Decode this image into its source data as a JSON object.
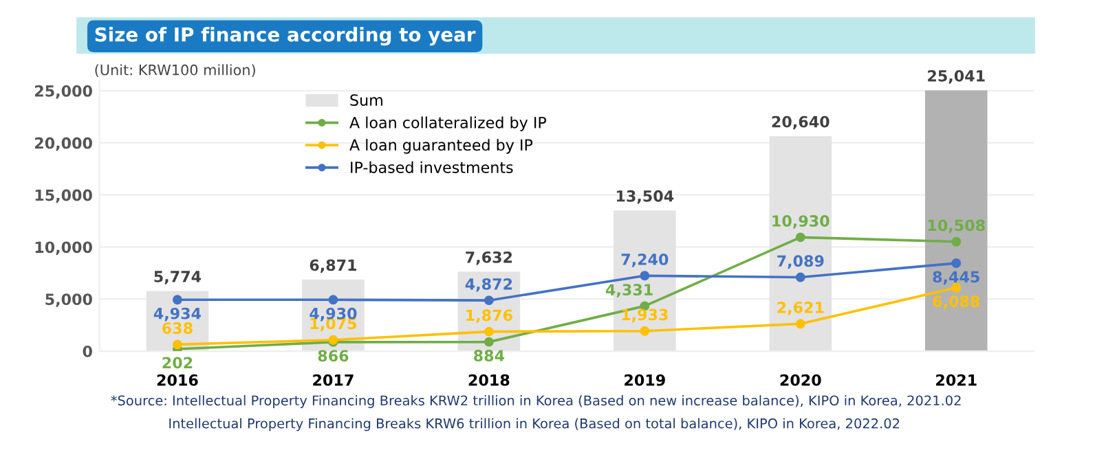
{
  "chart_data": {
    "type": "bar",
    "title": "Size of IP finance according to year",
    "ylabel": "(Unit: KRW100 million)",
    "categories": [
      "2016",
      "2017",
      "2018",
      "2019",
      "2020",
      "2021"
    ],
    "series": [
      {
        "name": "Sum",
        "color": "#e3e3e3",
        "colors": [
          "#e3e3e3",
          "#e3e3e3",
          "#e3e3e3",
          "#e3e3e3",
          "#e3e3e3",
          "#b2b2b2"
        ],
        "values": [
          5774,
          6871,
          7632,
          13504,
          20640,
          25041
        ],
        "value_labels": [
          "5,774",
          "6,871",
          "7,632",
          "13,504",
          "20,640",
          "25,041"
        ]
      },
      {
        "name": "A loan collateralized by IP",
        "type": "line",
        "color": "#70ad47",
        "values": [
          202,
          866,
          884,
          4331,
          10930,
          10508
        ],
        "value_labels": [
          "202",
          "866",
          "884",
          "4,331",
          "10,930",
          "10,508"
        ]
      },
      {
        "name": "A loan guaranteed by IP",
        "type": "line",
        "color": "#ffc000",
        "values": [
          638,
          1075,
          1876,
          1933,
          2621,
          6088
        ],
        "value_labels": [
          "638",
          "1,075",
          "1,876",
          "1,933",
          "2,621",
          "6,088"
        ]
      },
      {
        "name": "IP-based investments",
        "type": "line",
        "color": "#4472c4",
        "values": [
          4934,
          4930,
          4872,
          7240,
          7089,
          8445
        ],
        "value_labels": [
          "4,934",
          "4,930",
          "4,872",
          "7,240",
          "7,089",
          "8,445"
        ]
      }
    ],
    "ylim": [
      0,
      26000
    ],
    "yticks": [
      {
        "value": 0,
        "label": "0"
      },
      {
        "value": 5000,
        "label": "5,000"
      },
      {
        "value": 10000,
        "label": "10,000"
      },
      {
        "value": 15000,
        "label": "15,000"
      },
      {
        "value": 20000,
        "label": "20,000"
      },
      {
        "value": 25000,
        "label": "25,000"
      }
    ],
    "grid": "y",
    "legend": "top",
    "marker": "circle",
    "line_style": "solid",
    "annotations": [
      "*Source: Intellectual Property Financing Breaks KRW2 trillion in Korea (Based on new increase balance), KIPO in Korea, 2021.02",
      "Intellectual Property Financing Breaks KRW6 trillion in Korea (Based on total balance), KIPO in Korea, 2022.02"
    ]
  }
}
